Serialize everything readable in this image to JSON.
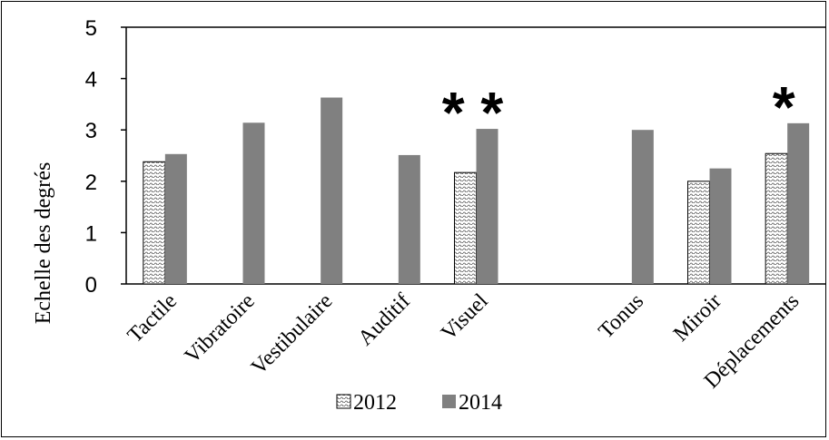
{
  "chart_data": {
    "type": "bar",
    "title": "",
    "xlabel": "",
    "ylabel": "Echelle des degrés",
    "ylim": [
      0,
      5
    ],
    "yticks": [
      "0",
      "1",
      "2",
      "3",
      "4",
      "5"
    ],
    "categories": [
      "Tactile",
      "Vibratoire",
      "Vestibulaire",
      "Auditif",
      "Visuel",
      "",
      "Tonus",
      "Miroir",
      "Déplacements"
    ],
    "series": [
      {
        "name": "2012",
        "values": [
          2.38,
          null,
          null,
          null,
          2.17,
          null,
          null,
          2.0,
          2.54
        ]
      },
      {
        "name": "2014",
        "values": [
          2.53,
          3.14,
          3.63,
          2.51,
          3.02,
          null,
          3.0,
          2.25,
          3.13
        ]
      }
    ],
    "annotations": [
      {
        "category": "Visuel",
        "text": "* *"
      },
      {
        "category": "Déplacements",
        "text": "*"
      }
    ],
    "grid": false,
    "legend_position": "bottom",
    "colors": {
      "2012": "#ffffff",
      "2014": "#808080",
      "hatch": "#555555",
      "axis": "#000000"
    }
  }
}
